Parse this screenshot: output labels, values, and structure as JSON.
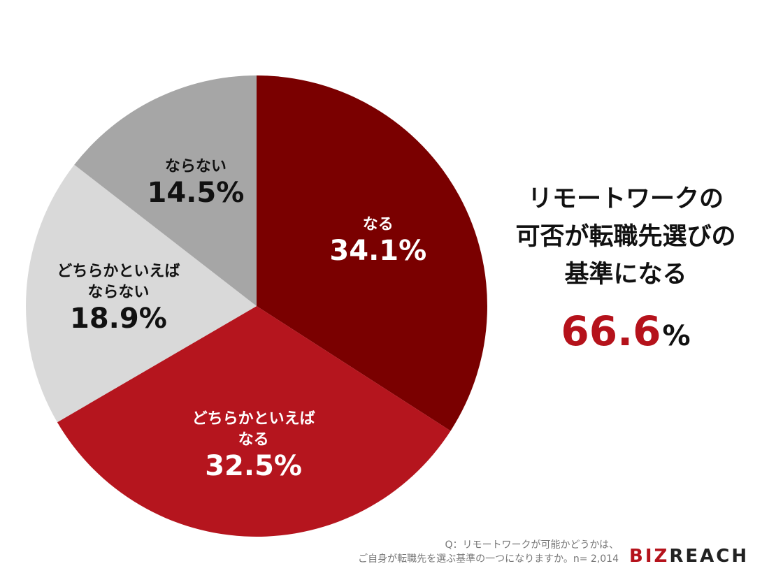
{
  "chart_data": {
    "type": "pie",
    "slices": [
      {
        "label": "なる",
        "value": 34.1,
        "value_label": "34.1%",
        "color": "#7a0000",
        "text_color": "#ffffff"
      },
      {
        "label": "どちらかといえば\nなる",
        "value": 32.5,
        "value_label": "32.5%",
        "color": "#b5151e",
        "text_color": "#ffffff"
      },
      {
        "label": "どちらかといえば\nならない",
        "value": 18.9,
        "value_label": "18.9%",
        "color": "#d9d9d9",
        "text_color": "#111111"
      },
      {
        "label": "ならない",
        "value": 14.5,
        "value_label": "14.5%",
        "color": "#a6a6a6",
        "text_color": "#111111"
      }
    ],
    "start_angle_deg": 0,
    "direction": "clockwise"
  },
  "callout": {
    "lines": [
      "リモートワークの",
      "可否が転職先選びの",
      "基準になる"
    ],
    "value_number": "66.6",
    "value_unit": "%"
  },
  "footnote": {
    "lines": [
      "Q：リモートワークが可能かどうかは、",
      "ご自身が転職先を選ぶ基準の一つになりますか。n= 2,014"
    ]
  },
  "logo": {
    "part1": "BIZ",
    "part2": "REACH"
  }
}
